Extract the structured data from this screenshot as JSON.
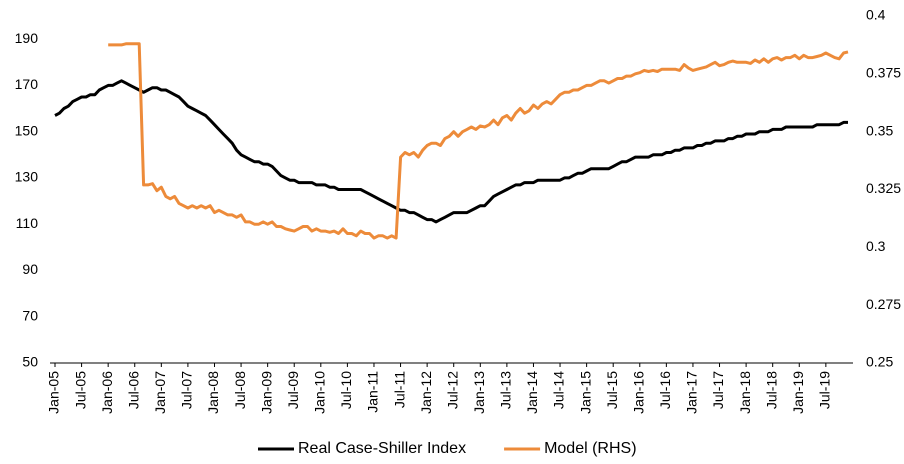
{
  "chart_data": {
    "type": "line",
    "categories": [
      "Jan-05",
      null,
      null,
      null,
      null,
      null,
      "Jul-05",
      null,
      null,
      null,
      null,
      null,
      "Jan-06",
      null,
      null,
      null,
      null,
      null,
      "Jul-06",
      null,
      null,
      null,
      null,
      null,
      "Jan-07",
      null,
      null,
      null,
      null,
      null,
      "Jul-07",
      null,
      null,
      null,
      null,
      null,
      "Jan-08",
      null,
      null,
      null,
      null,
      null,
      "Jul-08",
      null,
      null,
      null,
      null,
      null,
      "Jan-09",
      null,
      null,
      null,
      null,
      null,
      "Jul-09",
      null,
      null,
      null,
      null,
      null,
      "Jan-10",
      null,
      null,
      null,
      null,
      null,
      "Jul-10",
      null,
      null,
      null,
      null,
      null,
      "Jan-11",
      null,
      null,
      null,
      null,
      null,
      "Jul-11",
      null,
      null,
      null,
      null,
      null,
      "Jan-12",
      null,
      null,
      null,
      null,
      null,
      "Jul-12",
      null,
      null,
      null,
      null,
      null,
      "Jan-13",
      null,
      null,
      null,
      null,
      null,
      "Jul-13",
      null,
      null,
      null,
      null,
      null,
      "Jan-14",
      null,
      null,
      null,
      null,
      null,
      "Jul-14",
      null,
      null,
      null,
      null,
      null,
      "Jan-15",
      null,
      null,
      null,
      null,
      null,
      "Jul-15",
      null,
      null,
      null,
      null,
      null,
      "Jan-16",
      null,
      null,
      null,
      null,
      null,
      "Jul-16",
      null,
      null,
      null,
      null,
      null,
      "Jan-17",
      null,
      null,
      null,
      null,
      null,
      "Jul-17",
      null,
      null,
      null,
      null,
      null,
      "Jan-18",
      null,
      null,
      null,
      null,
      null,
      "Jul-18",
      null,
      null,
      null,
      null,
      null,
      "Jan-19",
      null,
      null,
      null,
      null,
      null,
      "Jul-19",
      null,
      null,
      null,
      null,
      null
    ],
    "series": [
      {
        "name": "Real Case-Shiller Index",
        "color": "#000000",
        "axis": "y",
        "values": [
          157,
          158,
          160,
          161,
          163,
          164,
          165,
          165,
          166,
          166,
          168,
          169,
          170,
          170,
          171,
          172,
          171,
          170,
          169,
          168,
          167,
          168,
          169,
          169,
          168,
          168,
          167,
          166,
          165,
          163,
          161,
          160,
          159,
          158,
          157,
          155,
          153,
          151,
          149,
          147,
          145,
          142,
          140,
          139,
          138,
          137,
          137,
          136,
          136,
          135,
          133,
          131,
          130,
          129,
          129,
          128,
          128,
          128,
          128,
          127,
          127,
          127,
          126,
          126,
          125,
          125,
          125,
          125,
          125,
          125,
          124,
          123,
          122,
          121,
          120,
          119,
          118,
          117,
          116,
          116,
          115,
          115,
          114,
          113,
          112,
          112,
          111,
          112,
          113,
          114,
          115,
          115,
          115,
          115,
          116,
          117,
          118,
          118,
          120,
          122,
          123,
          124,
          125,
          126,
          127,
          127,
          128,
          128,
          128,
          129,
          129,
          129,
          129,
          129,
          129,
          130,
          130,
          131,
          132,
          132,
          133,
          134,
          134,
          134,
          134,
          134,
          135,
          136,
          137,
          137,
          138,
          139,
          139,
          139,
          139,
          140,
          140,
          140,
          141,
          141,
          142,
          142,
          143,
          143,
          143,
          144,
          144,
          145,
          145,
          146,
          146,
          146,
          147,
          147,
          148,
          148,
          149,
          149,
          149,
          150,
          150,
          150,
          151,
          151,
          151,
          152,
          152,
          152,
          152,
          152,
          152,
          152,
          153,
          153,
          153,
          153,
          153,
          153,
          154,
          154
        ]
      },
      {
        "name": "Model (RHS)",
        "color": "#ed8b3a",
        "axis": "y2",
        "values": [
          null,
          null,
          null,
          null,
          null,
          null,
          null,
          null,
          null,
          null,
          null,
          null,
          0.3875,
          0.3875,
          0.3875,
          0.3875,
          0.388,
          0.388,
          0.388,
          0.388,
          0.327,
          0.327,
          0.3275,
          0.3245,
          0.326,
          0.322,
          0.321,
          0.322,
          0.319,
          0.318,
          0.317,
          0.318,
          0.317,
          0.318,
          0.317,
          0.318,
          0.315,
          0.316,
          0.315,
          0.314,
          0.314,
          0.313,
          0.314,
          0.311,
          0.311,
          0.31,
          0.31,
          0.311,
          0.31,
          0.311,
          0.309,
          0.309,
          0.308,
          0.3075,
          0.307,
          0.308,
          0.309,
          0.309,
          0.307,
          0.308,
          0.307,
          0.307,
          0.3065,
          0.307,
          0.306,
          0.308,
          0.306,
          0.306,
          0.305,
          0.307,
          0.306,
          0.306,
          0.304,
          0.305,
          0.305,
          0.304,
          0.305,
          0.304,
          0.339,
          0.341,
          0.34,
          0.341,
          0.339,
          0.342,
          0.344,
          0.345,
          0.345,
          0.344,
          0.347,
          0.348,
          0.35,
          0.348,
          0.35,
          0.351,
          0.352,
          0.351,
          0.3525,
          0.352,
          0.353,
          0.355,
          0.353,
          0.356,
          0.357,
          0.355,
          0.358,
          0.36,
          0.358,
          0.359,
          0.3615,
          0.36,
          0.362,
          0.363,
          0.362,
          0.364,
          0.366,
          0.367,
          0.367,
          0.368,
          0.368,
          0.369,
          0.37,
          0.37,
          0.371,
          0.372,
          0.372,
          0.371,
          0.372,
          0.373,
          0.373,
          0.374,
          0.374,
          0.375,
          0.3755,
          0.3765,
          0.376,
          0.3765,
          0.376,
          0.377,
          0.377,
          0.377,
          0.377,
          0.3765,
          0.379,
          0.3775,
          0.3765,
          0.377,
          0.3775,
          0.378,
          0.379,
          0.38,
          0.3785,
          0.379,
          0.38,
          0.3805,
          0.38,
          0.38,
          0.38,
          0.3795,
          0.381,
          0.38,
          0.3815,
          0.38,
          0.3815,
          0.382,
          0.381,
          0.382,
          0.382,
          0.383,
          0.3815,
          0.383,
          0.382,
          0.382,
          0.3825,
          0.383,
          0.384,
          0.383,
          0.382,
          0.3815,
          0.384,
          0.3845
        ]
      }
    ],
    "ylim": [
      50,
      200
    ],
    "yticks": [
      50,
      70,
      90,
      110,
      130,
      150,
      170,
      190
    ],
    "y2lim": [
      0.25,
      0.4
    ],
    "y2ticks": [
      0.25,
      0.275,
      0.3,
      0.325,
      0.35,
      0.375,
      0.4
    ],
    "grid": false,
    "legend": "bottom"
  }
}
